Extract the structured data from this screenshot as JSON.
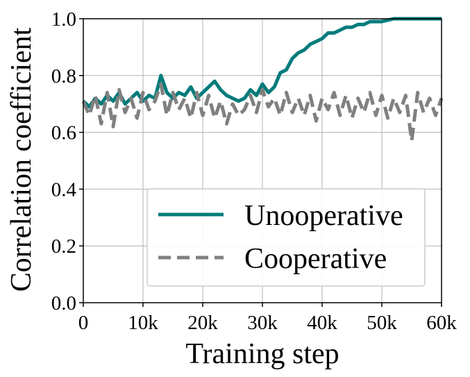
{
  "chart_data": {
    "type": "line",
    "title": "",
    "xlabel": "Training step",
    "ylabel": "Correlation coefficient",
    "xlim": [
      0,
      60000
    ],
    "ylim": [
      0.0,
      1.0
    ],
    "grid": true,
    "legend_position": "lower-right",
    "x_ticks": [
      0,
      10000,
      20000,
      30000,
      40000,
      50000,
      60000
    ],
    "x_tick_labels": [
      "0",
      "10k",
      "20k",
      "30k",
      "40k",
      "50k",
      "60k"
    ],
    "y_ticks": [
      0.0,
      0.2,
      0.4,
      0.6,
      0.8,
      1.0
    ],
    "y_tick_labels": [
      "0.0",
      "0.2",
      "0.4",
      "0.6",
      "0.8",
      "1.0"
    ],
    "series": [
      {
        "name": "Unooperative",
        "color": "#007b7b",
        "style": "solid",
        "x": [
          0,
          1000,
          2000,
          3000,
          4000,
          5000,
          6000,
          7000,
          8000,
          9000,
          10000,
          11000,
          12000,
          13000,
          14000,
          15000,
          16000,
          17000,
          18000,
          19000,
          20000,
          21000,
          22000,
          23000,
          24000,
          25000,
          26000,
          27000,
          28000,
          29000,
          30000,
          31000,
          32000,
          33000,
          34000,
          35000,
          36000,
          37000,
          38000,
          39000,
          40000,
          41000,
          42000,
          43000,
          44000,
          45000,
          46000,
          47000,
          48000,
          49000,
          50000,
          52000,
          54000,
          56000,
          58000,
          60000
        ],
        "values": [
          0.71,
          0.69,
          0.72,
          0.7,
          0.73,
          0.71,
          0.74,
          0.7,
          0.72,
          0.74,
          0.71,
          0.73,
          0.72,
          0.8,
          0.74,
          0.72,
          0.74,
          0.73,
          0.76,
          0.72,
          0.74,
          0.76,
          0.78,
          0.75,
          0.73,
          0.72,
          0.71,
          0.72,
          0.75,
          0.73,
          0.77,
          0.74,
          0.76,
          0.81,
          0.82,
          0.86,
          0.88,
          0.89,
          0.91,
          0.92,
          0.93,
          0.95,
          0.95,
          0.96,
          0.97,
          0.97,
          0.98,
          0.98,
          0.99,
          0.99,
          0.99,
          1.0,
          1.0,
          1.0,
          1.0,
          1.0
        ]
      },
      {
        "name": "Cooperative",
        "color": "#808080",
        "style": "dashed",
        "x": [
          0,
          1000,
          2000,
          3000,
          4000,
          5000,
          6000,
          7000,
          8000,
          9000,
          10000,
          11000,
          12000,
          13000,
          14000,
          15000,
          16000,
          17000,
          18000,
          19000,
          20000,
          21000,
          22000,
          23000,
          24000,
          25000,
          26000,
          27000,
          28000,
          29000,
          30000,
          31000,
          32000,
          33000,
          34000,
          35000,
          36000,
          37000,
          38000,
          39000,
          40000,
          41000,
          42000,
          43000,
          44000,
          45000,
          46000,
          47000,
          48000,
          49000,
          50000,
          51000,
          52000,
          53000,
          54000,
          55000,
          56000,
          57000,
          58000,
          59000,
          60000
        ],
        "values": [
          0.71,
          0.66,
          0.73,
          0.63,
          0.74,
          0.62,
          0.75,
          0.67,
          0.72,
          0.65,
          0.74,
          0.68,
          0.71,
          0.77,
          0.66,
          0.74,
          0.68,
          0.72,
          0.65,
          0.74,
          0.66,
          0.73,
          0.65,
          0.71,
          0.63,
          0.7,
          0.66,
          0.68,
          0.73,
          0.67,
          0.75,
          0.69,
          0.72,
          0.66,
          0.74,
          0.67,
          0.72,
          0.66,
          0.73,
          0.64,
          0.72,
          0.68,
          0.74,
          0.66,
          0.73,
          0.65,
          0.72,
          0.67,
          0.74,
          0.66,
          0.73,
          0.65,
          0.72,
          0.67,
          0.73,
          0.57,
          0.74,
          0.67,
          0.72,
          0.66,
          0.72
        ]
      }
    ]
  }
}
